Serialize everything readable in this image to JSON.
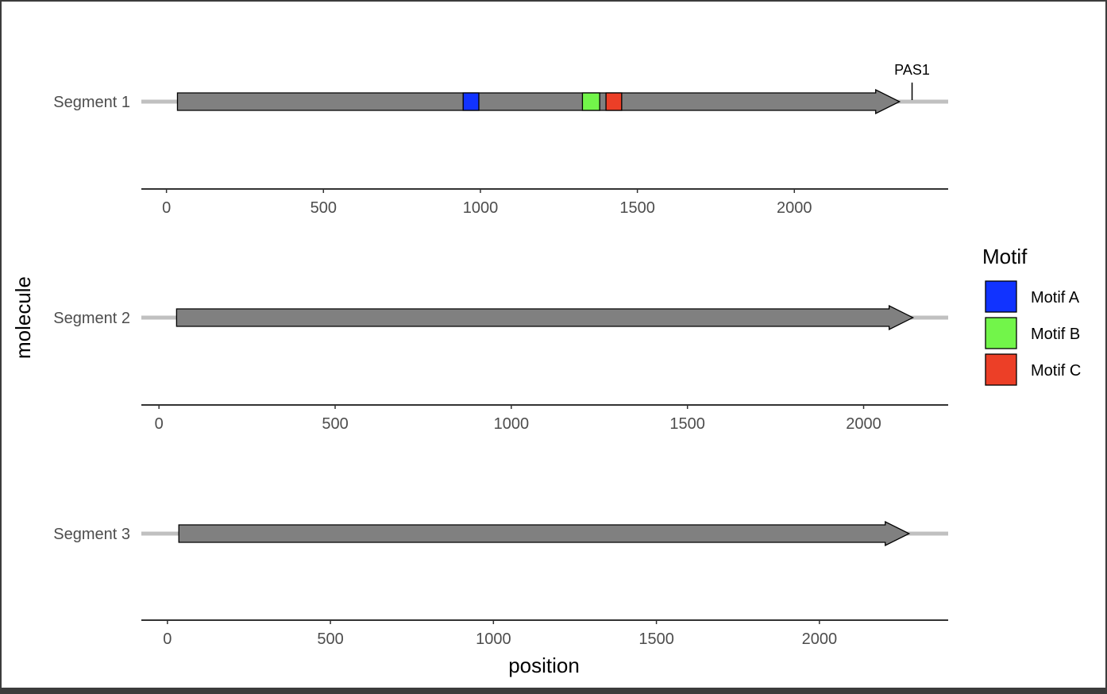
{
  "chart_data": {
    "type": "gene-arrow",
    "xlabel": "position",
    "ylabel": "molecule",
    "gene_fill": "#808080",
    "molecule_line_color": "#c0c0c0",
    "legend": {
      "title": "Motif",
      "placement": "right",
      "entries": [
        {
          "name": "Motif A",
          "color": "#1133ff"
        },
        {
          "name": "Motif B",
          "color": "#72f54a"
        },
        {
          "name": "Motif C",
          "color": "#ec3f27"
        }
      ]
    },
    "molecules": [
      {
        "label": "Segment 1",
        "xlim": [
          -80,
          2490
        ],
        "ticks": [
          0,
          500,
          1000,
          1500,
          2000
        ],
        "line": [
          -80,
          2490
        ],
        "gene": {
          "start": 35,
          "end": 2335,
          "direction": "forward"
        },
        "motifs": [
          {
            "name": "Motif A",
            "start": 945,
            "end": 995
          },
          {
            "name": "Motif B",
            "start": 1325,
            "end": 1380
          },
          {
            "name": "Motif C",
            "start": 1400,
            "end": 1450
          }
        ],
        "annotations": [
          {
            "label": "PAS1",
            "position": 2375
          }
        ]
      },
      {
        "label": "Segment 2",
        "xlim": [
          -50,
          2240
        ],
        "ticks": [
          0,
          500,
          1000,
          1500,
          2000
        ],
        "line": [
          -50,
          2240
        ],
        "gene": {
          "start": 50,
          "end": 2140,
          "direction": "forward"
        },
        "motifs": [],
        "annotations": []
      },
      {
        "label": "Segment 3",
        "xlim": [
          -80,
          2395
        ],
        "ticks": [
          0,
          500,
          1000,
          1500,
          2000
        ],
        "line": [
          -80,
          2395
        ],
        "gene": {
          "start": 35,
          "end": 2275,
          "direction": "forward"
        },
        "motifs": [],
        "annotations": []
      }
    ]
  }
}
